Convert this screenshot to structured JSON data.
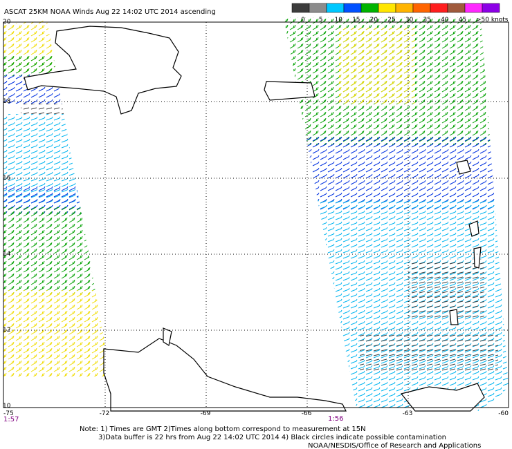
{
  "header": {
    "title": "ASCAT 25KM NOAA Winds Aug 22 14:02 UTC 2014 ascending"
  },
  "colorbar": {
    "colors": [
      "#3c3c3c",
      "#8c8c8c",
      "#00c8ff",
      "#0050ff",
      "#00b400",
      "#ffe600",
      "#ffb400",
      "#ff6400",
      "#ff1e1e",
      "#a05a3c",
      "#ff28ff",
      "#8c00e6"
    ],
    "labels": [
      "0",
      "5",
      "10",
      "15",
      "20",
      "25",
      "30",
      "35",
      "40",
      "45",
      ">50 knots"
    ]
  },
  "lat_labels": [
    "20",
    "18",
    "16",
    "14",
    "12",
    "10"
  ],
  "lon_labels": [
    "-75",
    "-72",
    "-69",
    "-66",
    "-63",
    "-60"
  ],
  "times": [
    "1:57",
    "1:56"
  ],
  "notes": [
    "Note: 1) Times are GMT 2)Times along bottom correspond to measurement at 15N",
    "3)Data buffer is 22 hrs from Aug 22 14:02 UTC 2014 4) Black circles indicate possible contamination",
    "NOAA/NESDIS/Office of Research and Applications"
  ]
}
